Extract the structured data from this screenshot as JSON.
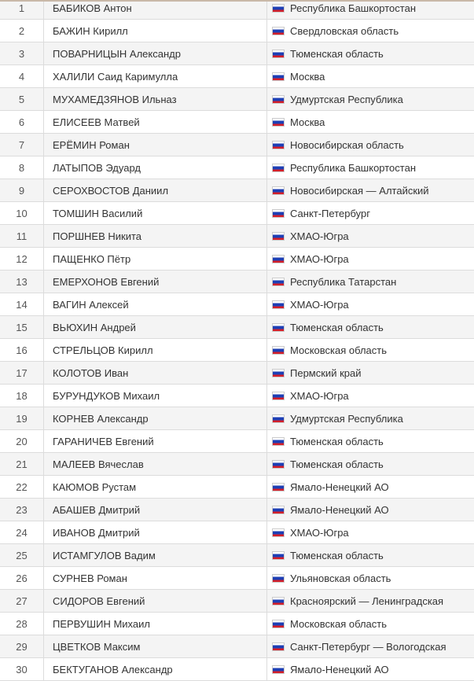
{
  "flag_icon": "russia-flag-icon",
  "colors": {
    "flag_white": "#ffffff",
    "flag_blue": "#1d3fb5",
    "flag_red": "#d4202a"
  },
  "rows": [
    {
      "n": "1",
      "name": "БАБИКОВ Антон",
      "region": "Республика Башкортостан"
    },
    {
      "n": "2",
      "name": "БАЖИН Кирилл",
      "region": "Свердловская область"
    },
    {
      "n": "3",
      "name": "ПОВАРНИЦЫН Александр",
      "region": "Тюменская область"
    },
    {
      "n": "4",
      "name": "ХАЛИЛИ Саид Каримулла",
      "region": "Москва"
    },
    {
      "n": "5",
      "name": "МУХАМЕДЗЯНОВ Ильназ",
      "region": "Удмуртская Республика"
    },
    {
      "n": "6",
      "name": "ЕЛИСЕЕВ Матвей",
      "region": "Москва"
    },
    {
      "n": "7",
      "name": "ЕРЁМИН Роман",
      "region": "Новосибирская область"
    },
    {
      "n": "8",
      "name": "ЛАТЫПОВ Эдуард",
      "region": "Республика Башкортостан"
    },
    {
      "n": "9",
      "name": "СЕРОХВОСТОВ Даниил",
      "region": "Новосибирская — Алтайский"
    },
    {
      "n": "10",
      "name": "ТОМШИН Василий",
      "region": "Санкт-Петербург"
    },
    {
      "n": "11",
      "name": "ПОРШНЕВ Никита",
      "region": "ХМАО-Югра"
    },
    {
      "n": "12",
      "name": "ПАЩЕНКО Пётр",
      "region": "ХМАО-Югра"
    },
    {
      "n": "13",
      "name": "ЕМЕРХОНОВ Евгений",
      "region": "Республика Татарстан"
    },
    {
      "n": "14",
      "name": "ВАГИН Алексей",
      "region": "ХМАО-Югра"
    },
    {
      "n": "15",
      "name": "ВЬЮХИН Андрей",
      "region": "Тюменская область"
    },
    {
      "n": "16",
      "name": "СТРЕЛЬЦОВ Кирилл",
      "region": "Московская область"
    },
    {
      "n": "17",
      "name": "КОЛОТОВ Иван",
      "region": "Пермский край"
    },
    {
      "n": "18",
      "name": "БУРУНДУКОВ Михаил",
      "region": "ХМАО-Югра"
    },
    {
      "n": "19",
      "name": "КОРНЕВ Александр",
      "region": "Удмуртская Республика"
    },
    {
      "n": "20",
      "name": "ГАРАНИЧЕВ Евгений",
      "region": "Тюменская область"
    },
    {
      "n": "21",
      "name": "МАЛЕЕВ Вячеслав",
      "region": "Тюменская область"
    },
    {
      "n": "22",
      "name": "КАЮМОВ Рустам",
      "region": "Ямало-Ненецкий АО"
    },
    {
      "n": "23",
      "name": "АБАШЕВ Дмитрий",
      "region": "Ямало-Ненецкий АО"
    },
    {
      "n": "24",
      "name": "ИВАНОВ Дмитрий",
      "region": "ХМАО-Югра"
    },
    {
      "n": "25",
      "name": "ИСТАМГУЛОВ Вадим",
      "region": "Тюменская область"
    },
    {
      "n": "26",
      "name": "СУРНЕВ Роман",
      "region": "Ульяновская область"
    },
    {
      "n": "27",
      "name": "СИДОРОВ Евгений",
      "region": "Красноярский — Ленинградская"
    },
    {
      "n": "28",
      "name": "ПЕРВУШИН Михаил",
      "region": "Московская область"
    },
    {
      "n": "29",
      "name": "ЦВЕТКОВ Максим",
      "region": "Санкт-Петербург — Вологодская"
    },
    {
      "n": "30",
      "name": "БЕКТУГАНОВ Александр",
      "region": "Ямало-Ненецкий АО"
    }
  ]
}
